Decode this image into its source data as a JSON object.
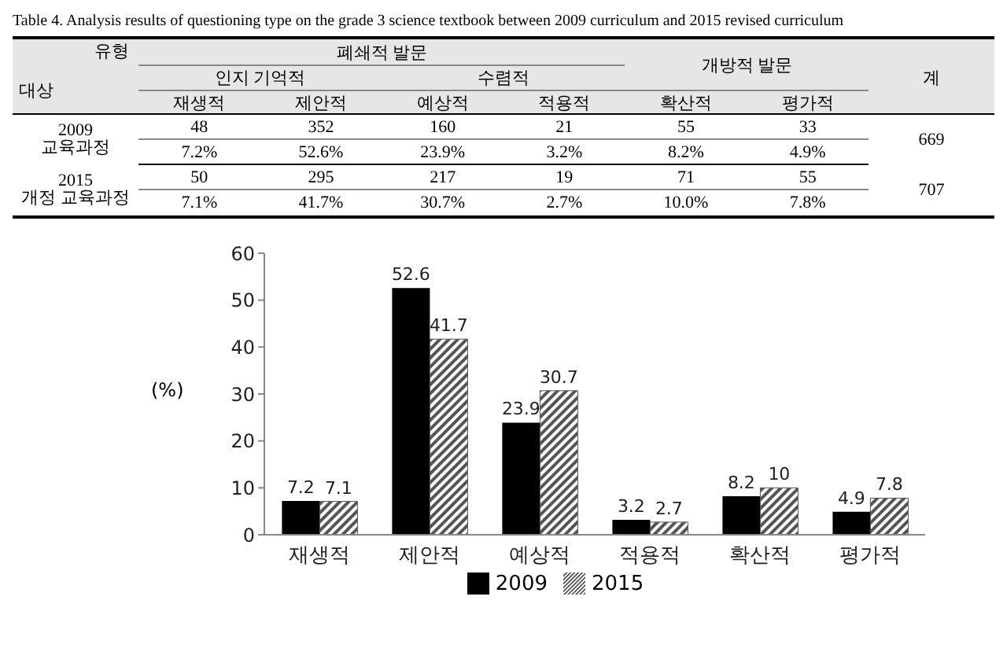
{
  "chart_data": [
    {
      "type": "other",
      "title": "Table 4. Analysis results of questioning type on the grade 3 science textbook between 2009 curriculum and 2015 revised curriculum",
      "annotations": [
        "유형",
        "대상",
        "폐쇄적 발문",
        "개방적 발문",
        "계",
        "인지 기억적",
        "수렴적",
        "재생적",
        "제안적",
        "예상적",
        "적용적",
        "확산적",
        "평가적",
        "2009",
        "교육과정",
        "48",
        "352",
        "160",
        "21",
        "55",
        "33",
        "669",
        "7.2%",
        "52.6%",
        "23.9%",
        "3.2%",
        "8.2%",
        "4.9%",
        "2015",
        "개정 교육과정",
        "50",
        "295",
        "217",
        "19",
        "71",
        "55",
        "707",
        "7.1%",
        "41.7%",
        "30.7%",
        "2.7%",
        "10.0%",
        "7.8%"
      ]
    },
    {
      "type": "bar",
      "ylabel": "(%)",
      "categories": [
        "재생적",
        "제안적",
        "예상적",
        "적용적",
        "확산적",
        "평가적"
      ],
      "series": [
        {
          "name": "2009",
          "color": "#000000",
          "values": [
            7.2,
            52.6,
            23.9,
            3.2,
            8.2,
            4.9
          ]
        },
        {
          "name": "2015",
          "color": "#555555",
          "values": [
            7.1,
            41.7,
            30.7,
            2.7,
            10,
            7.8
          ]
        }
      ],
      "ylim": [
        0,
        60
      ],
      "yticks": [
        0,
        10,
        20,
        30,
        40,
        50,
        60
      ],
      "grid": false,
      "legend": "bottom",
      "data_labels": true
    }
  ]
}
